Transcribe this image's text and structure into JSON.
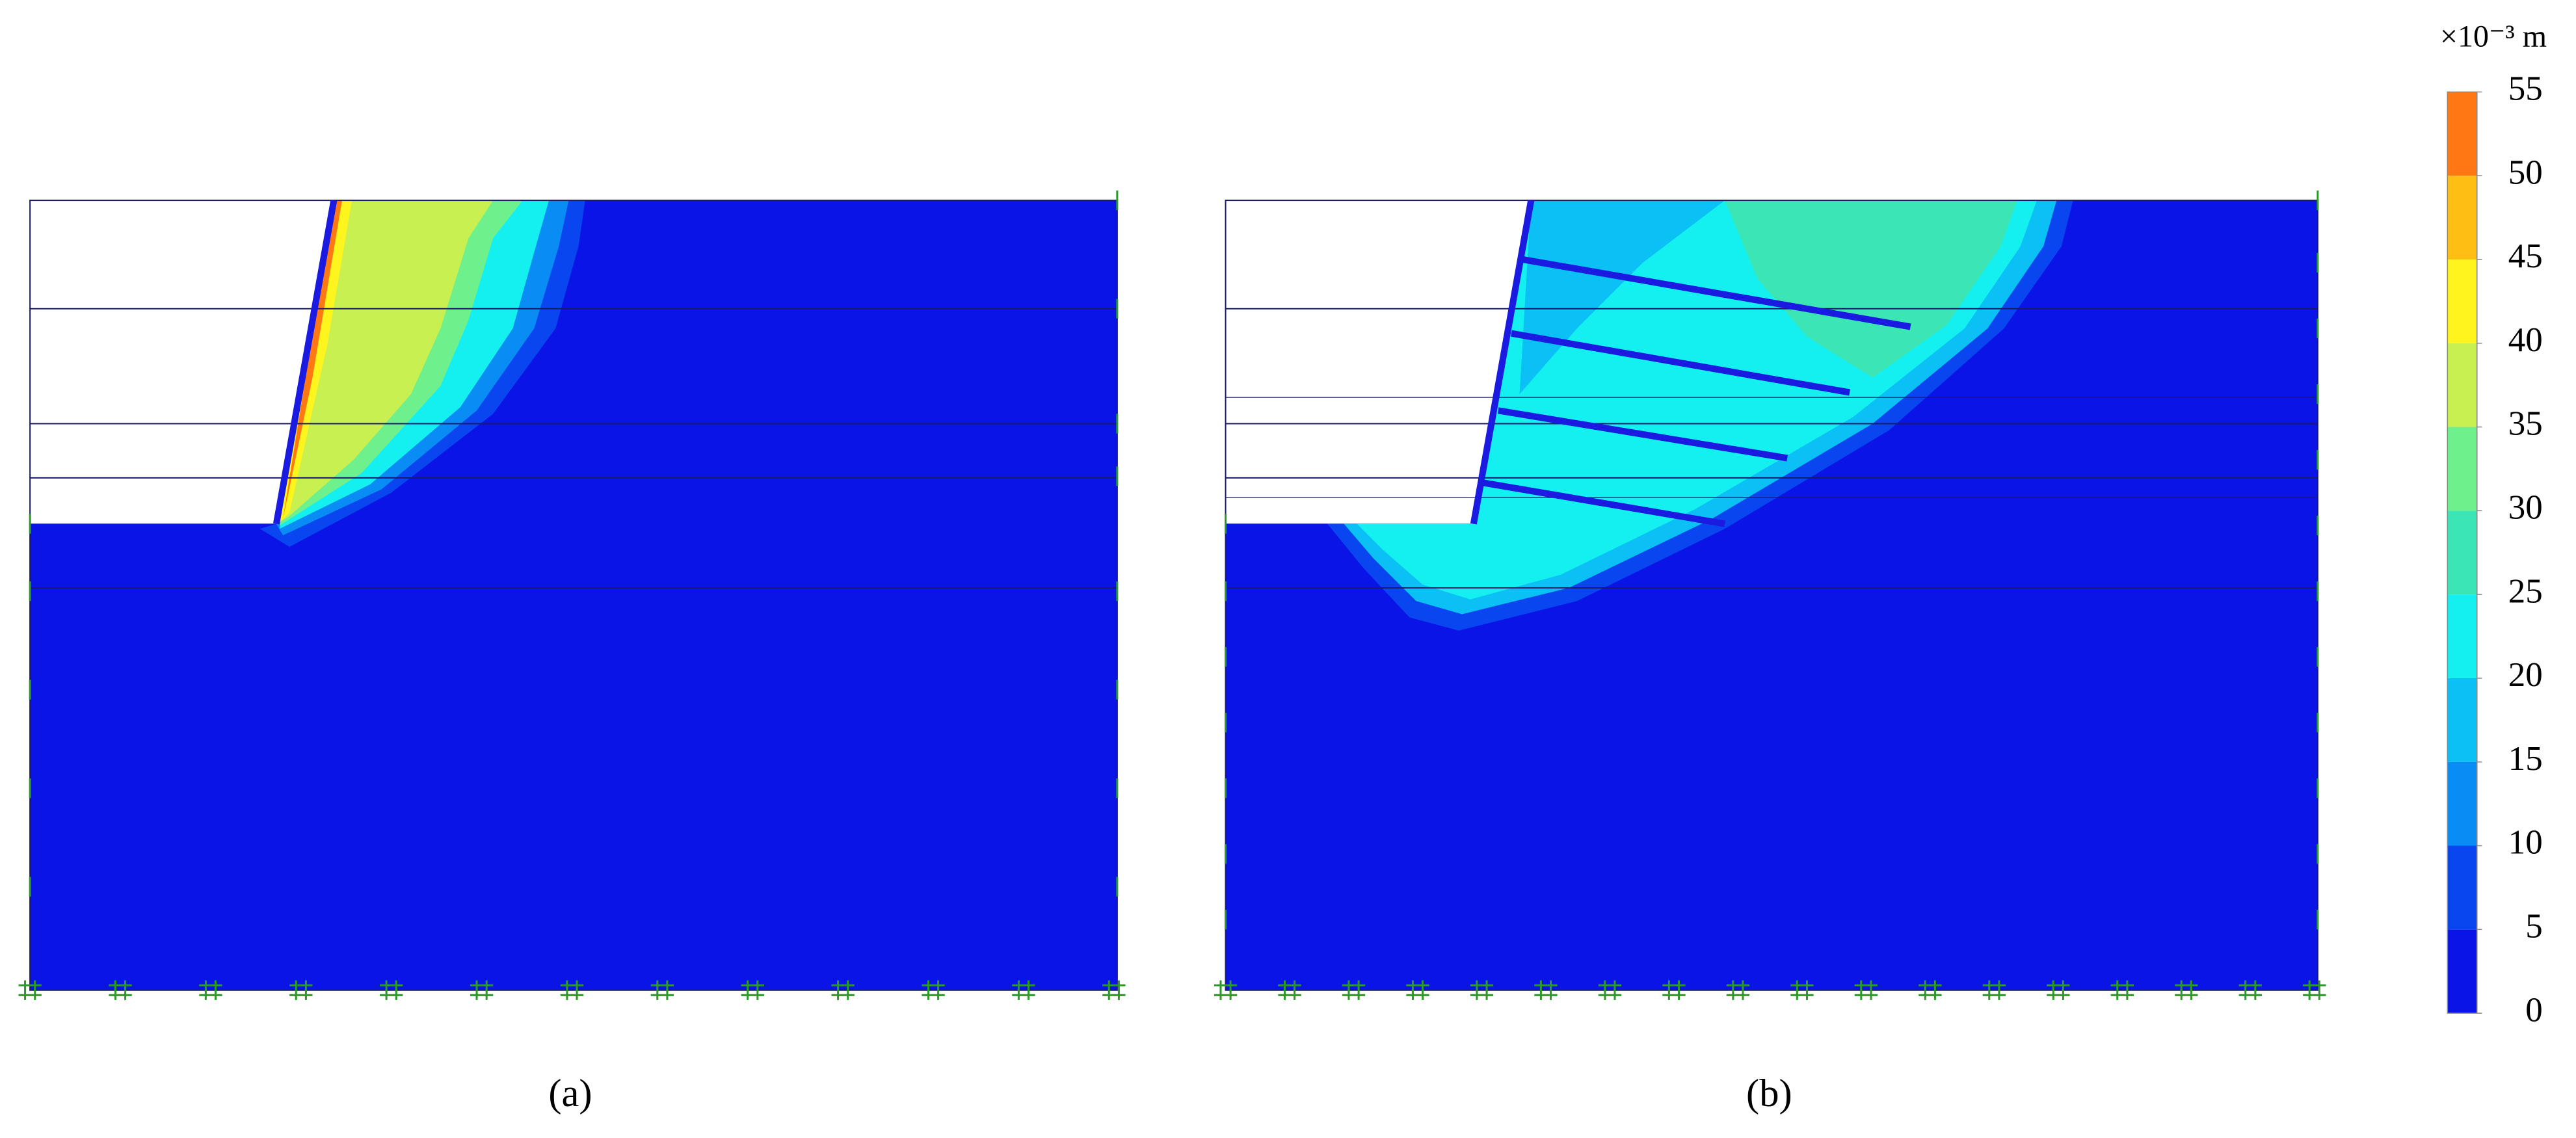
{
  "panels": [
    {
      "label": "(a)"
    },
    {
      "label": "(b)"
    }
  ],
  "colorbar": {
    "unit_label": "×10⁻³ m",
    "ticks": [
      0,
      5,
      10,
      15,
      20,
      25,
      30,
      35,
      40,
      45,
      50,
      55
    ],
    "colors": [
      "#0a14e6",
      "#0a46f0",
      "#0a8cf5",
      "#0ac0f5",
      "#14f0f0",
      "#3ce6b4",
      "#6ef08c",
      "#c8f050",
      "#fff51e",
      "#ffbe14",
      "#ff7814"
    ]
  }
}
